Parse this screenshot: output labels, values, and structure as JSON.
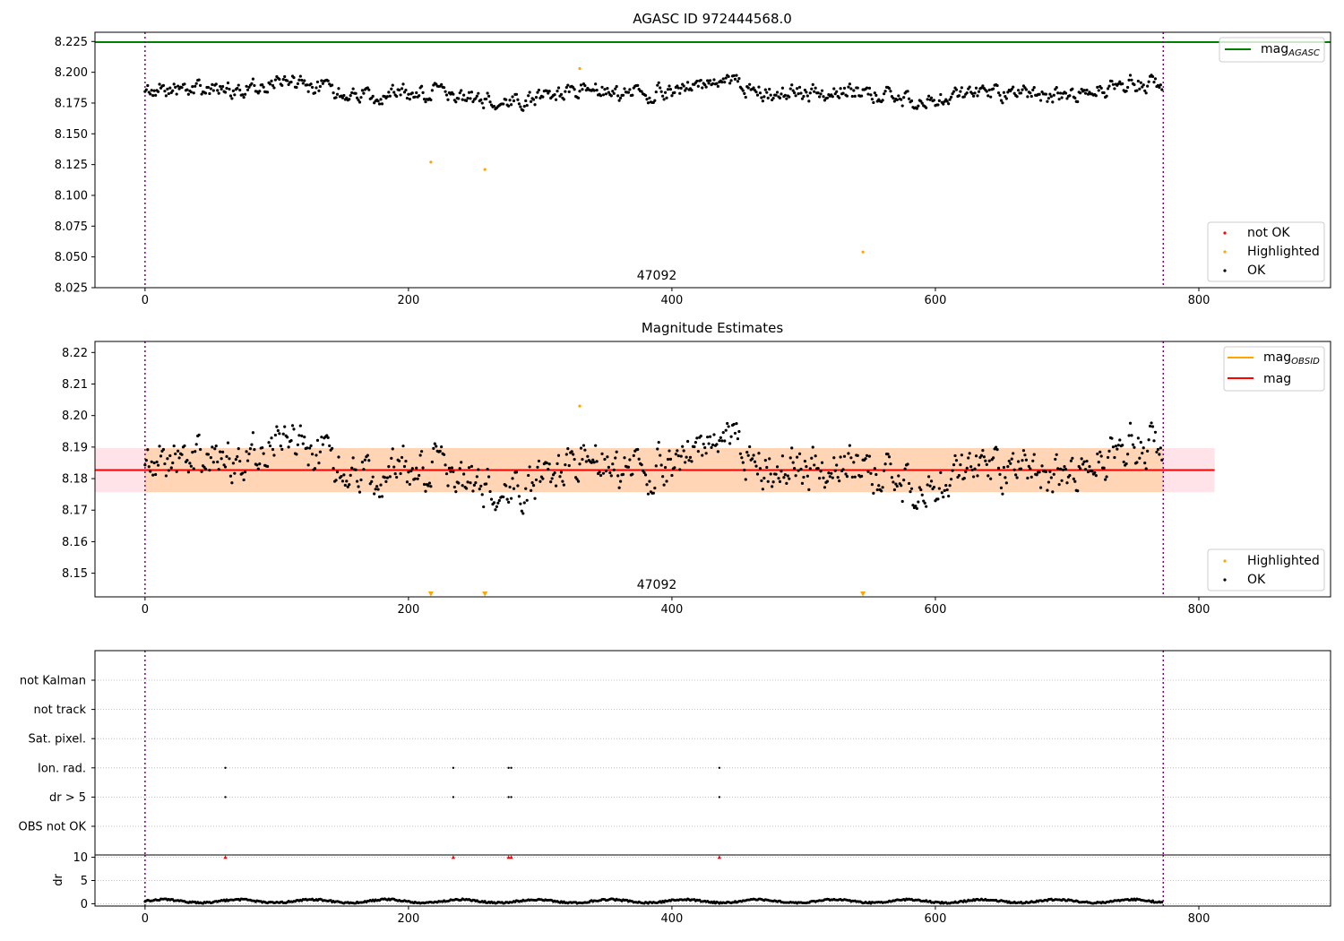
{
  "chart_data": [
    {
      "type": "scatter",
      "title": "AGASC ID 972444568.0",
      "xlim": [
        -38,
        900
      ],
      "ylim": [
        8.025,
        8.2325
      ],
      "x_ticks": [
        0,
        200,
        400,
        600,
        800
      ],
      "y_ticks": [
        8.025,
        8.05,
        8.075,
        8.1,
        8.125,
        8.15,
        8.175,
        8.2,
        8.225
      ],
      "y_tick_labels": [
        "8.025",
        "8.050",
        "8.075",
        "8.100",
        "8.125",
        "8.150",
        "8.175",
        "8.200",
        "8.225"
      ],
      "obsid_label": "47092",
      "obsid_boundaries": [
        0,
        773
      ],
      "hlines": [
        {
          "name": "mag_agasc",
          "value": 8.2245,
          "color": "#008000"
        }
      ],
      "ok_points": {
        "n": 773,
        "mean": 8.1835,
        "spread": 0.0095,
        "min": 8.163,
        "max": 8.201,
        "color": "#000000"
      },
      "series": [
        {
          "name": "Highlighted",
          "color": "#ffa500",
          "x": [
            217,
            258,
            330,
            545
          ],
          "y": [
            8.127,
            8.121,
            8.203,
            8.054
          ]
        }
      ],
      "legends": [
        {
          "position": "top-right",
          "entries": [
            {
              "label_main": "mag",
              "label_sub": "AGASC",
              "marker": "line",
              "color": "#008000"
            }
          ]
        },
        {
          "position": "lower-right",
          "entries": [
            {
              "label": "not OK",
              "marker": "dot",
              "color": "#ff0000"
            },
            {
              "label": "Highlighted",
              "marker": "dot",
              "color": "#ffa500"
            },
            {
              "label": "OK",
              "marker": "dot",
              "color": "#000000"
            }
          ]
        }
      ]
    },
    {
      "type": "scatter",
      "title": "Magnitude Estimates",
      "xlim": [
        -38,
        900
      ],
      "ylim": [
        8.1425,
        8.2235
      ],
      "x_ticks": [
        0,
        200,
        400,
        600,
        800
      ],
      "y_ticks": [
        8.15,
        8.16,
        8.17,
        8.18,
        8.19,
        8.2,
        8.21,
        8.22
      ],
      "y_tick_labels": [
        "8.15",
        "8.16",
        "8.17",
        "8.18",
        "8.19",
        "8.20",
        "8.21",
        "8.22"
      ],
      "obsid_label": "47092",
      "obsid_boundaries": [
        0,
        773
      ],
      "band": {
        "x": [
          -38,
          812
        ],
        "y": [
          8.1757,
          8.1897
        ],
        "color": "#ffc0cb"
      },
      "obsid_band": {
        "x": [
          0,
          773
        ],
        "y": [
          8.1757,
          8.1897
        ],
        "color": "#ffa500"
      },
      "hlines": [
        {
          "name": "mag_obsid",
          "value": 8.1827,
          "color": "#ffa500"
        },
        {
          "name": "mag",
          "value": 8.1827,
          "color": "#ff0000"
        }
      ],
      "ok_points": {
        "n": 773,
        "mean": 8.1835,
        "spread": 0.0095,
        "min": 8.163,
        "max": 8.201,
        "color": "#000000"
      },
      "series": [
        {
          "name": "Highlighted",
          "color": "#ffa500",
          "x": [
            330
          ],
          "y": [
            8.203
          ]
        },
        {
          "name": "Highlighted (below axis)",
          "color": "#ffa500",
          "x": [
            217,
            258,
            545
          ],
          "y": [
            8.1425,
            8.1425,
            8.1425
          ]
        }
      ],
      "legends": [
        {
          "position": "top-right",
          "entries": [
            {
              "label_main": "mag",
              "label_sub": "OBSID",
              "marker": "line",
              "color": "#ffa500"
            },
            {
              "label_main": "mag",
              "label_sub": "",
              "marker": "line",
              "color": "#ff0000"
            }
          ]
        },
        {
          "position": "lower-right",
          "entries": [
            {
              "label": "Highlighted",
              "marker": "dot",
              "color": "#ffa500"
            },
            {
              "label": "OK",
              "marker": "dot",
              "color": "#000000"
            }
          ]
        }
      ]
    },
    {
      "type": "scatter",
      "xlim": [
        -38,
        900
      ],
      "categories": [
        "not Kalman",
        "not track",
        "Sat. pixel.",
        "Ion. rad.",
        "dr > 5",
        "OBS not OK"
      ],
      "flag_points": [
        {
          "category": "Ion. rad.",
          "x": [
            61,
            234,
            276,
            278,
            436
          ]
        },
        {
          "category": "dr > 5",
          "x": [
            61,
            234,
            276,
            278,
            436
          ]
        }
      ],
      "obsid_boundaries": [
        0,
        773
      ],
      "grid": true
    },
    {
      "type": "scatter",
      "ylabel": "dr",
      "xlim": [
        -38,
        900
      ],
      "ylim": [
        -0.5,
        10.5
      ],
      "x_ticks": [
        0,
        200,
        400,
        600,
        800
      ],
      "y_ticks": [
        0,
        5,
        10
      ],
      "y_tick_labels": [
        "0",
        "5",
        "10"
      ],
      "obsid_boundaries": [
        0,
        773
      ],
      "dr_points": {
        "n": 773,
        "typical_range": [
          0.1,
          1.2
        ]
      },
      "outliers": {
        "color": "#ff0000",
        "marker": "triangle",
        "x": [
          61,
          234,
          276,
          278,
          436
        ],
        "y": [
          10,
          10,
          10,
          10,
          10
        ]
      },
      "grid": true
    }
  ]
}
